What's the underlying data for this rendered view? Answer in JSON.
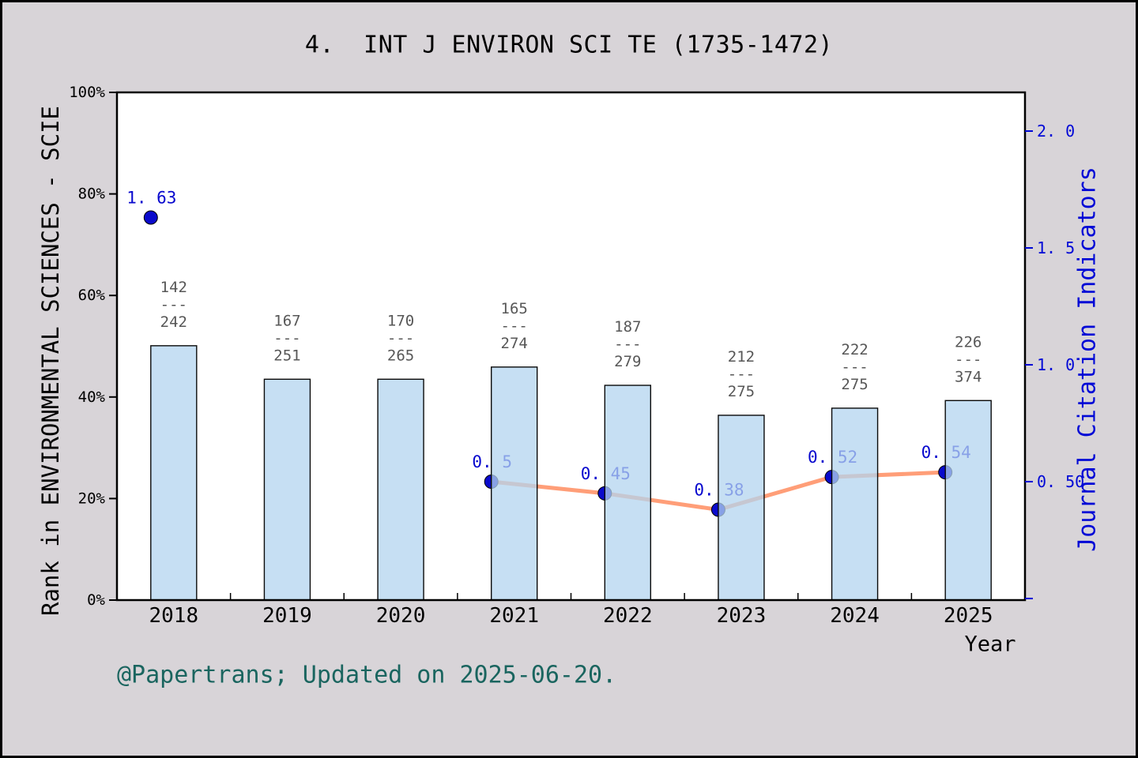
{
  "chart_data": {
    "type": "bar+line",
    "title": "4.  INT J ENVIRON SCI TE (1735-1472)",
    "x_axis_title": "Year",
    "left_axis": {
      "title": "Rank in ENVIRONMENTAL SCIENCES - SCIE",
      "unit": "%",
      "range": [
        0,
        100
      ],
      "ticks": [
        {
          "value": 0,
          "label": "0%"
        },
        {
          "value": 20,
          "label": "20%"
        },
        {
          "value": 40,
          "label": "40%"
        },
        {
          "value": 60,
          "label": "60%"
        },
        {
          "value": 80,
          "label": "80%"
        },
        {
          "value": 100,
          "label": "100%"
        }
      ]
    },
    "right_axis": {
      "title": "Journal Citation Indicators",
      "range": [
        0,
        2.17
      ],
      "ticks": [
        {
          "value": 2.0,
          "label": "2. 0"
        },
        {
          "value": 1.5,
          "label": "1. 5"
        },
        {
          "value": 1.0,
          "label": "1. 0"
        },
        {
          "value": 0.5,
          "label": "0. 50"
        },
        {
          "value": 0.0,
          "label": ""
        }
      ]
    },
    "years": [
      "2018",
      "2019",
      "2020",
      "2021",
      "2022",
      "2023",
      "2024",
      "2025"
    ],
    "fraction_divider": "---",
    "bars": [
      {
        "year": "2018",
        "rank": "142",
        "total": "242",
        "percent": 50.1
      },
      {
        "year": "2019",
        "rank": "167",
        "total": "251",
        "percent": 43.5
      },
      {
        "year": "2020",
        "rank": "170",
        "total": "265",
        "percent": 43.5
      },
      {
        "year": "2021",
        "rank": "165",
        "total": "274",
        "percent": 45.9
      },
      {
        "year": "2022",
        "rank": "187",
        "total": "279",
        "percent": 42.3
      },
      {
        "year": "2023",
        "rank": "212",
        "total": "275",
        "percent": 36.4
      },
      {
        "year": "2024",
        "rank": "222",
        "total": "275",
        "percent": 37.8
      },
      {
        "year": "2025",
        "rank": "226",
        "total": "374",
        "percent": 39.3
      }
    ],
    "jci_points": [
      {
        "year": "2018",
        "value": 1.63,
        "label": "1. 63",
        "connected": false
      },
      {
        "year": "2021",
        "value": 0.5,
        "label": "0. 5",
        "connected": true
      },
      {
        "year": "2022",
        "value": 0.45,
        "label": "0. 45",
        "connected": true
      },
      {
        "year": "2023",
        "value": 0.38,
        "label": "0. 38",
        "connected": true
      },
      {
        "year": "2024",
        "value": 0.52,
        "label": "0. 52",
        "connected": true
      },
      {
        "year": "2025",
        "value": 0.54,
        "label": "0. 54",
        "connected": true
      }
    ]
  },
  "watermark": "@Papertrans; Updated on 2025-06-20.",
  "colors": {
    "background": "#D8D4D8",
    "plot_background": "#FFFFFF",
    "bar_fill": "#B3D4EF",
    "bar_opacity": 0.75,
    "bar_border": "#0A0A0A",
    "line": "#FF9E78",
    "marker": "#0A0ACC",
    "marker_border": "#000000",
    "value_label": "#0707CE",
    "right_axis": "#0008D6",
    "fraction_label": "#575757",
    "axis": "#000000",
    "watermark": "#1A655F"
  }
}
